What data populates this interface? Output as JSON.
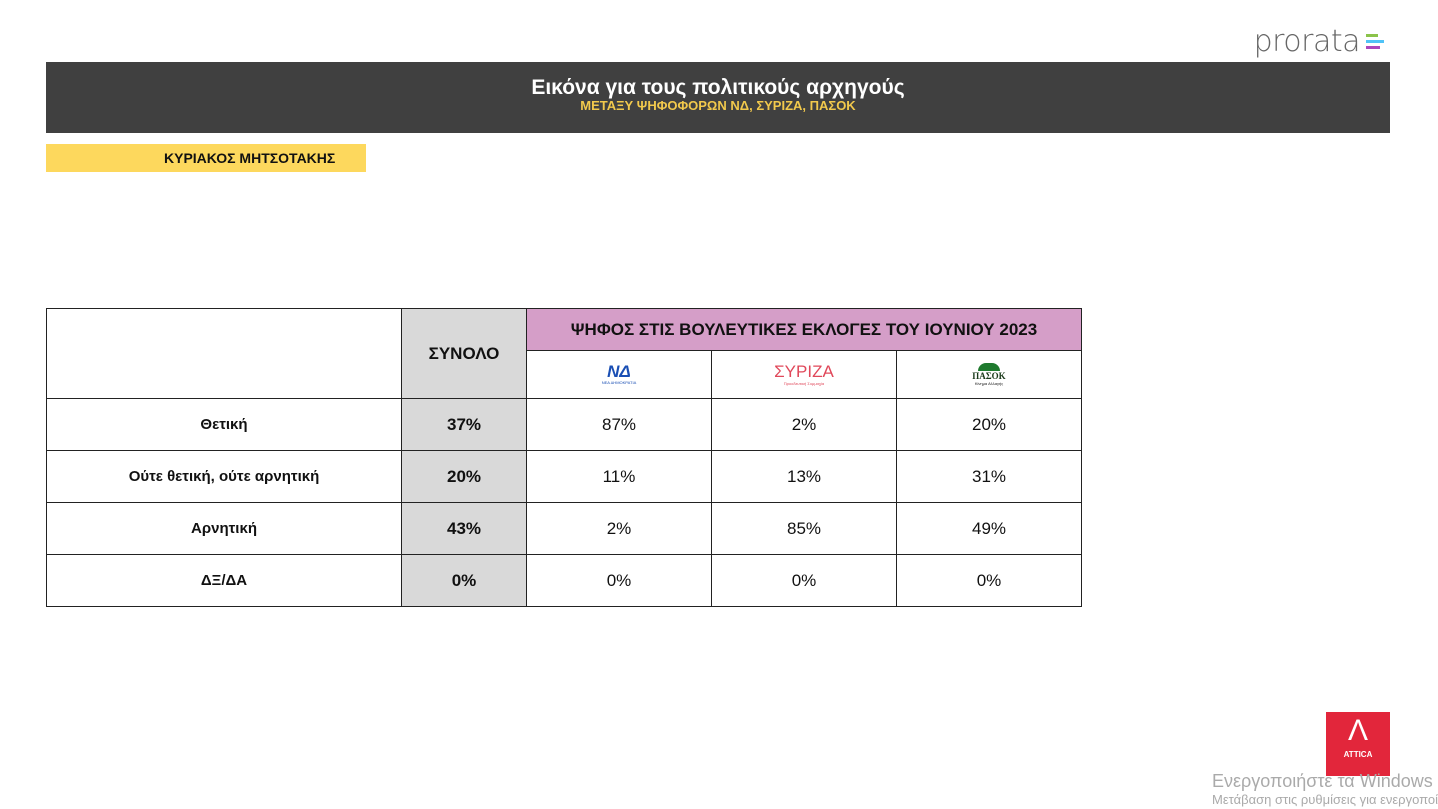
{
  "brand": {
    "name": "prorata",
    "bar_colors": [
      "#8bc34a",
      "#4fc3f7",
      "#ab47bc"
    ]
  },
  "banner": {
    "title": "Εικόνα για τους πολιτικούς αρχηγούς",
    "subtitle": "ΜΕΤΑΞΥ ΨΗΦΟΦΟΡΩΝ ΝΔ, ΣΥΡΙΖΑ, ΠΑΣΟΚ"
  },
  "leader": "ΚΥΡΙΑΚΟΣ ΜΗΤΣΟΤΑΚΗΣ",
  "table": {
    "total_header": "ΣΥΝΟΛΟ",
    "group_header": "ΨΗΦΟΣ ΣΤΙΣ ΒΟΥΛΕΥΤΙΚΕΣ ΕΚΛΟΓΕΣ ΤΟΥ ΙΟΥΝΙΟΥ 2023",
    "parties": [
      {
        "logo": "ΝΔ",
        "label": "ΝΕΑ ΔΗΜΟΚΡΑΤΙΑ",
        "color": "#1a4fb4"
      },
      {
        "logo": "ΣΥΡΙΖΑ",
        "label": "Προοδευτική Συμμαχία",
        "color": "#e0485a"
      },
      {
        "logo": "ΠΑΣΟΚ",
        "label": "Κίνημα Αλλαγής",
        "color": "#1f7a2e"
      }
    ],
    "rows": [
      {
        "label": "Θετική",
        "total": "37%",
        "values": [
          "87%",
          "2%",
          "20%"
        ]
      },
      {
        "label": "Ούτε θετική, ούτε αρνητική",
        "total": "20%",
        "values": [
          "11%",
          "13%",
          "31%"
        ]
      },
      {
        "label": "Αρνητική",
        "total": "43%",
        "values": [
          "2%",
          "85%",
          "49%"
        ]
      },
      {
        "label": "ΔΞ/ΔΑ",
        "total": "0%",
        "values": [
          "0%",
          "0%",
          "0%"
        ]
      }
    ]
  },
  "attica": {
    "label": "ATTICA",
    "glyph": "Λ"
  },
  "watermark": {
    "line1": "Ενεργοποιήστε τα Windows",
    "line2": "Μετάβαση στις ρυθμίσεις για ενεργοποίηση των Windows."
  }
}
